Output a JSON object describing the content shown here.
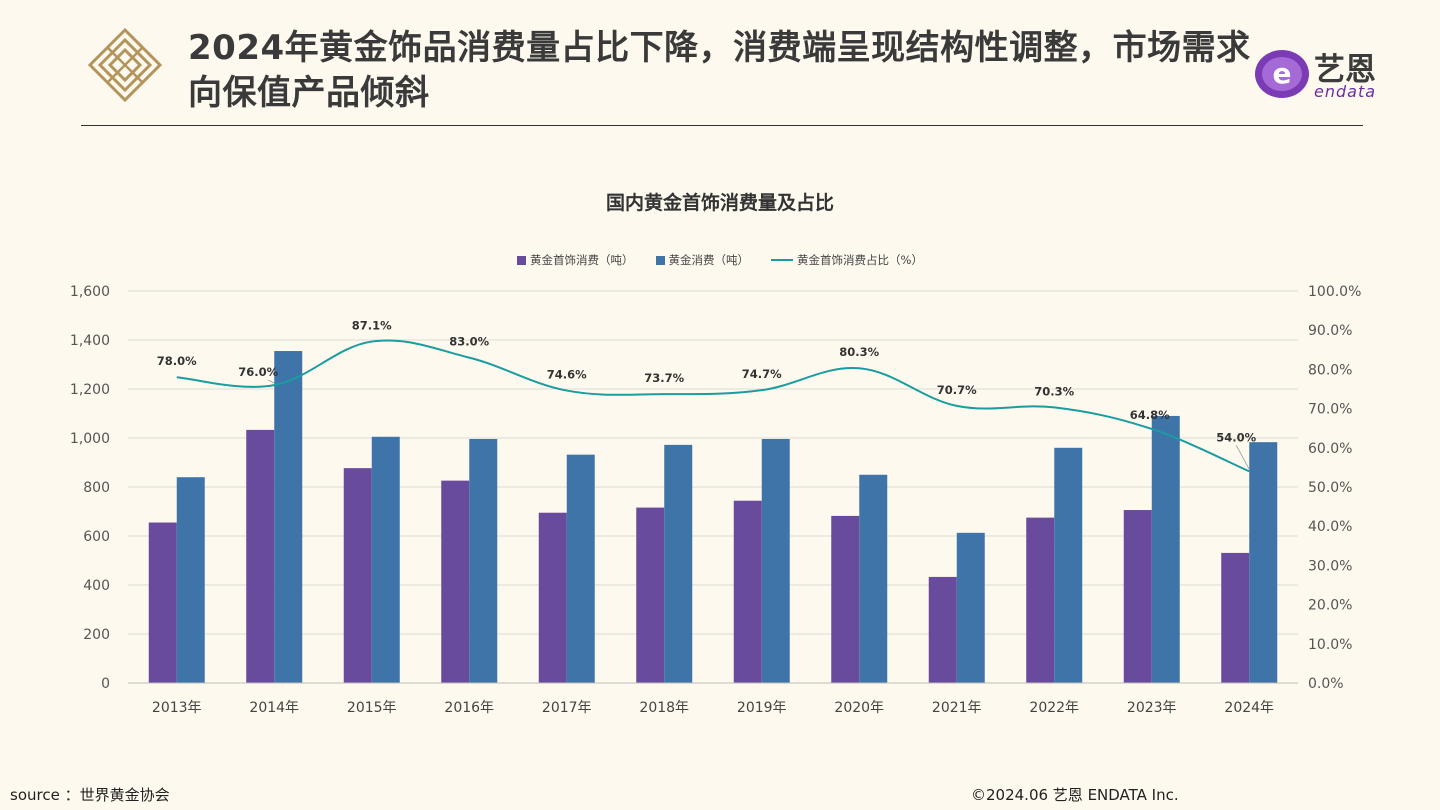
{
  "header": {
    "title": "2024年黄金饰品消费量占比下降，消费端呈现结构性调整，市场需求向保值产品倾斜",
    "brand_cn": "艺恩",
    "brand_en": "endata"
  },
  "footer": {
    "source": "source ：世界黄金协会",
    "copyright": "©2024.06  艺恩 ENDATA Inc."
  },
  "colors": {
    "jewelry": "#684b9c",
    "total": "#3e74a8",
    "ratio": "#1a9ca0",
    "background": "#fdf9ee"
  },
  "chart_data": {
    "type": "bar",
    "title": "国内黄金首饰消费量及占比",
    "categories": [
      "2013年",
      "2014年",
      "2015年",
      "2016年",
      "2017年",
      "2018年",
      "2019年",
      "2020年",
      "2021年",
      "2022年",
      "2023年",
      "2024年"
    ],
    "series": [
      {
        "name": "黄金首饰消费（吨）",
        "type": "bar",
        "axis": "left",
        "values": [
          655,
          1033,
          877,
          826,
          695,
          716,
          744,
          682,
          433,
          675,
          706,
          531
        ]
      },
      {
        "name": "黄金消费（吨）",
        "type": "bar",
        "axis": "left",
        "values": [
          840,
          1355,
          1005,
          996,
          932,
          972,
          996,
          850,
          613,
          960,
          1090,
          983
        ]
      },
      {
        "name": "黄金首饰消费占比（%）",
        "type": "line",
        "axis": "right",
        "values": [
          78.0,
          76.0,
          87.1,
          83.0,
          74.6,
          73.7,
          74.7,
          80.3,
          70.7,
          70.3,
          64.8,
          54.0
        ],
        "labels": [
          "78.0%",
          "76.0%",
          "87.1%",
          "83.0%",
          "74.6%",
          "73.7%",
          "74.7%",
          "80.3%",
          "70.7%",
          "70.3%",
          "64.8%",
          "54.0%"
        ]
      }
    ],
    "ylim": [
      0,
      1600
    ],
    "yticks": [
      "0",
      "200",
      "400",
      "600",
      "800",
      "1,000",
      "1,200",
      "1,400",
      "1,600"
    ],
    "y2lim": [
      0,
      100
    ],
    "y2ticks": [
      "0.0%",
      "10.0%",
      "20.0%",
      "30.0%",
      "40.0%",
      "50.0%",
      "60.0%",
      "70.0%",
      "80.0%",
      "90.0%",
      "100.0%"
    ],
    "grid": true,
    "legend": "top-center"
  }
}
